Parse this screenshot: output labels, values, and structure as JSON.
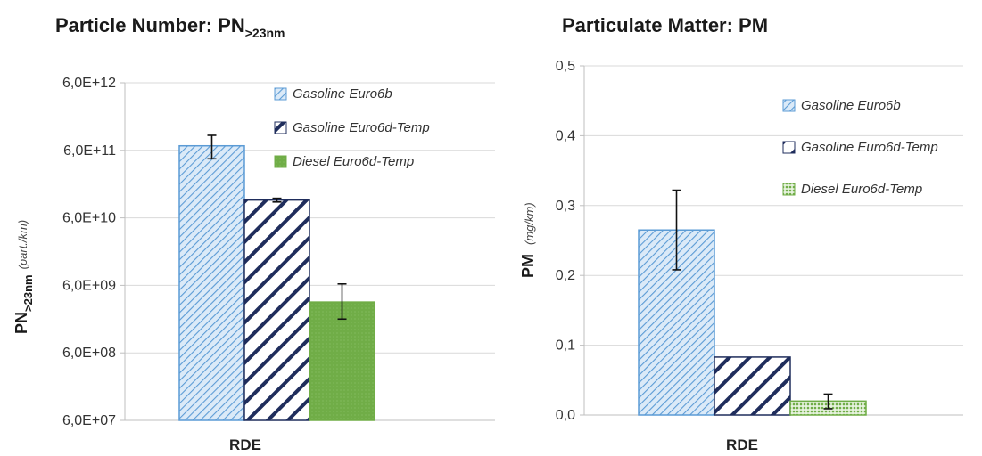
{
  "chart_data": [
    {
      "type": "bar",
      "title_main": "Particle Number: PN",
      "title_sub": ">23nm",
      "ylabel_main": "PN",
      "ylabel_sub": ">23nm",
      "ylabel_unit": "(part./km)",
      "yscale": "log",
      "ylim": [
        60000000,
        6000000000000
      ],
      "yticks": [
        60000000,
        600000000,
        6000000000,
        60000000000,
        600000000000,
        6000000000000
      ],
      "ytick_labels": [
        "6,0E+07",
        "6,0E+08",
        "6,0E+09",
        "6,0E+10",
        "6,0E+11",
        "6,0E+12"
      ],
      "grid": true,
      "legend_position": "top-right",
      "categories": [
        "RDE"
      ],
      "series": [
        {
          "name": "Gasoline Euro6b",
          "values": [
            700000000000
          ],
          "error": [
            [
              450000000000,
              1000000000000
            ]
          ],
          "color": "#5b9bd5",
          "pattern": "thin-diagonal-light"
        },
        {
          "name": "Gasoline Euro6d-Temp",
          "values": [
            110000000000
          ],
          "error": [
            [
              103000000000,
              117000000000
            ]
          ],
          "color": "#1f2d5c",
          "pattern": "wide-diagonal-dark"
        },
        {
          "name": "Diesel Euro6d-Temp",
          "values": [
            3400000000
          ],
          "error": [
            [
              1900000000,
              6300000000
            ]
          ],
          "color": "#70ad47",
          "pattern": "solid-green"
        }
      ]
    },
    {
      "type": "bar",
      "title": "Particulate Matter: PM",
      "ylabel_main": "PM",
      "ylabel_unit": "(mg/km)",
      "ylim": [
        0,
        0.5
      ],
      "yticks": [
        0,
        0.1,
        0.2,
        0.3,
        0.4,
        0.5
      ],
      "ytick_labels": [
        "0,0",
        "0,1",
        "0,2",
        "0,3",
        "0,4",
        "0,5"
      ],
      "grid": true,
      "legend_position": "top-right",
      "categories": [
        "RDE"
      ],
      "series": [
        {
          "name": "Gasoline Euro6b",
          "values": [
            0.265
          ],
          "error": [
            [
              0.208,
              0.322
            ]
          ],
          "color": "#5b9bd5",
          "pattern": "thin-diagonal-light"
        },
        {
          "name": "Gasoline Euro6d-Temp",
          "values": [
            0.083
          ],
          "error": null,
          "color": "#1f2d5c",
          "pattern": "wide-diagonal-dark"
        },
        {
          "name": "Diesel Euro6d-Temp",
          "values": [
            0.02
          ],
          "error": [
            [
              0.009,
              0.03
            ]
          ],
          "color": "#70ad47",
          "pattern": "dotted-green"
        }
      ]
    }
  ]
}
